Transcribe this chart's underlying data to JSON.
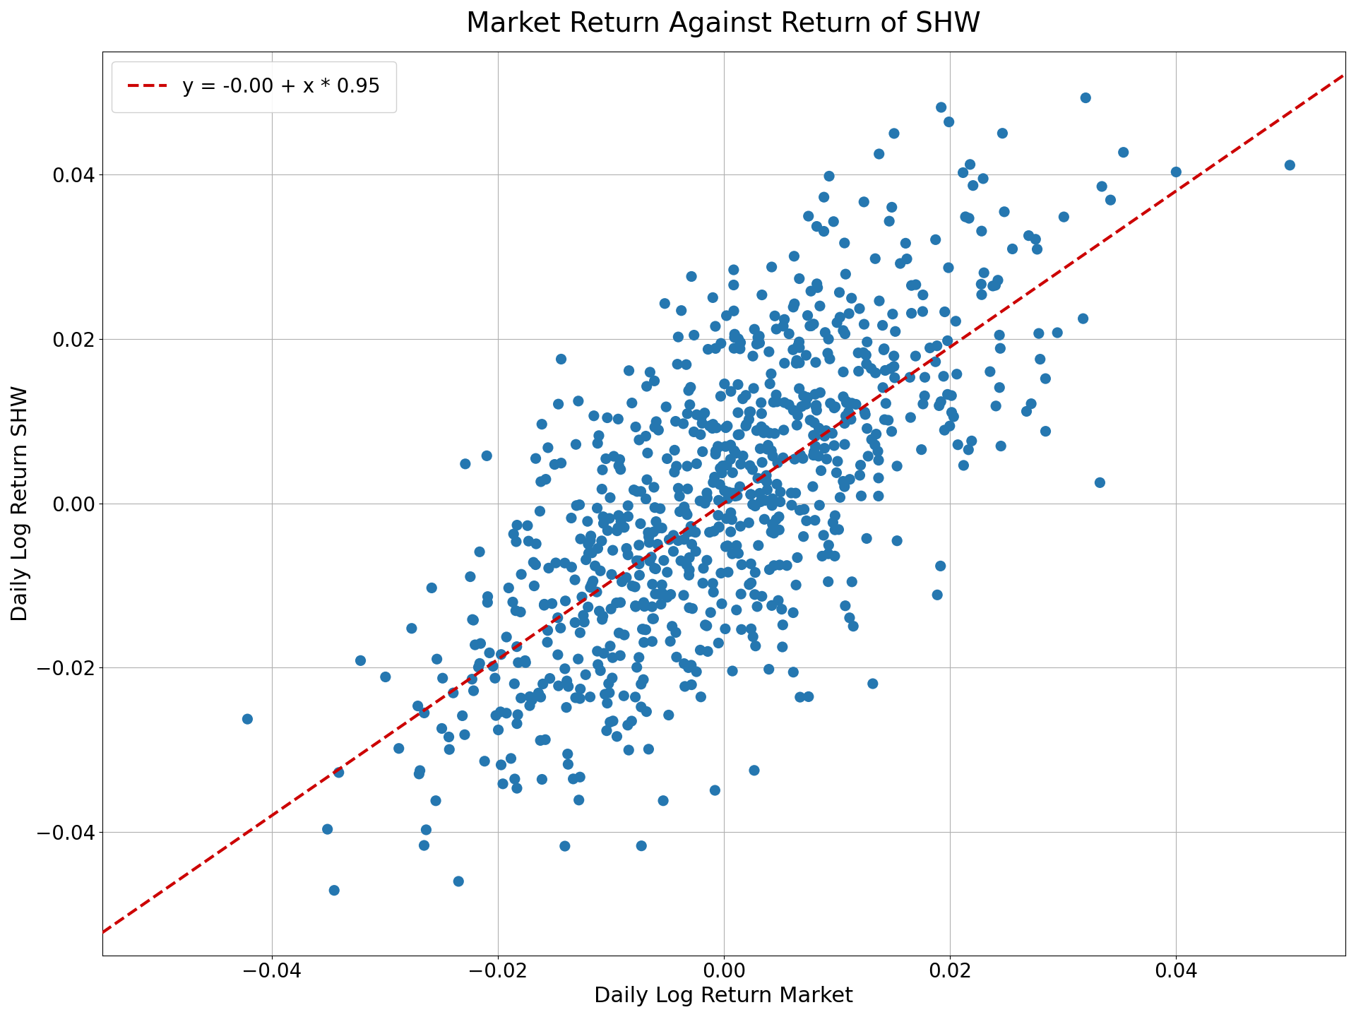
{
  "title": "Market Return Against Return of SHW",
  "xlabel": "Daily Log Return Market",
  "ylabel": "Daily Log Return SHW",
  "legend_label": "y = -0.00 + x * 0.95",
  "intercept": -0.0,
  "slope": 0.95,
  "dot_color": "#2577b0",
  "line_color": "#cc0000",
  "dot_size": 120,
  "dot_alpha": 1.0,
  "xlim": [
    -0.055,
    0.055
  ],
  "ylim": [
    -0.055,
    0.055
  ],
  "xticks": [
    -0.04,
    -0.02,
    0.0,
    0.02,
    0.04
  ],
  "yticks": [
    -0.04,
    -0.02,
    0.0,
    0.02,
    0.04
  ],
  "grid_color": "#b0b0b0",
  "seed": 42,
  "n_points": 800,
  "market_std": 0.013,
  "residual_std": 0.012,
  "title_fontsize": 28,
  "label_fontsize": 22,
  "tick_fontsize": 20,
  "legend_fontsize": 20,
  "figsize": [
    19.2,
    14.4
  ]
}
